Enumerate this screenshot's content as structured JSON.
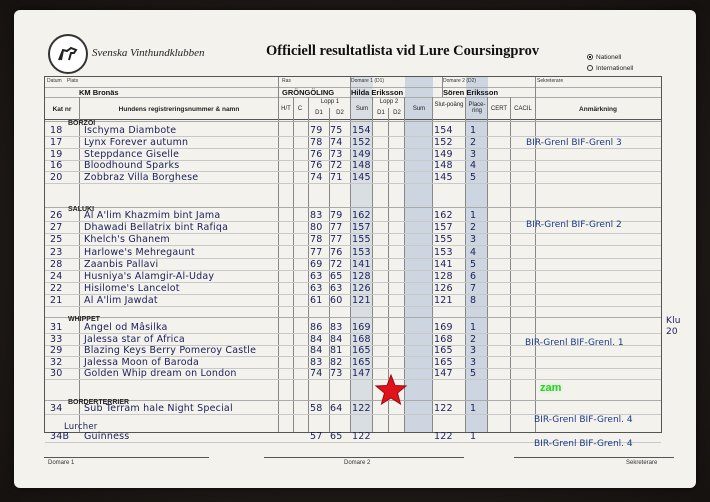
{
  "header": {
    "club": "Svenska Vinthundklubben",
    "title": "Officiell resultatlista vid Lure Coursingprov",
    "options": [
      "Nationell",
      "Internationell"
    ],
    "selected_option": "Nationell"
  },
  "info": {
    "datum_label": "Datum",
    "plats_label": "Plats",
    "plats_value": "KM Bronäs",
    "ras_label": "Ras",
    "ras_value": "GRÖNGÖLING",
    "domare1_label": "Domare 1 (D1)",
    "domare1_value": "Hilda Eriksson",
    "domare2_label": "Domare 2 (D2)",
    "domare2_value": "Sören Eriksson",
    "sekreterare_label": "Sekreterare"
  },
  "columns": {
    "kat_nr": "Kat nr",
    "name": "Hundens registreringsnummer & namn",
    "ht": "H/T",
    "c": "C",
    "d1": "D1",
    "d2": "D2",
    "lopp1": "Lopp 1",
    "lopp2": "Lopp 2",
    "sum": "Sum",
    "slut": "Slut-poäng",
    "placering": "Place-ring",
    "cert": "CERT",
    "cacil": "CACIL",
    "anm": "Anmärkning"
  },
  "groups": [
    {
      "breed": "BORZOI",
      "note": "BIR-Grenl  BIF-Grenl 3",
      "rows": [
        {
          "nr": "18",
          "name": "Ischyma Diambote",
          "l1d1": "79",
          "l1d2": "75",
          "sum": "154",
          "slut": "154",
          "plac": "1"
        },
        {
          "nr": "17",
          "name": "Lynx Forever autumn",
          "l1d1": "78",
          "l1d2": "74",
          "sum": "152",
          "slut": "152",
          "plac": "2"
        },
        {
          "nr": "19",
          "name": "Steppdance Giselle",
          "l1d1": "76",
          "l1d2": "73",
          "sum": "149",
          "slut": "149",
          "plac": "3"
        },
        {
          "nr": "16",
          "name": "Bloodhound Sparks",
          "l1d1": "76",
          "l1d2": "72",
          "sum": "148",
          "slut": "148",
          "plac": "4"
        },
        {
          "nr": "20",
          "name": "Zobbraz Villa Borghese",
          "l1d1": "74",
          "l1d2": "71",
          "sum": "145",
          "slut": "145",
          "plac": "5"
        }
      ]
    },
    {
      "breed": "SALUKI",
      "note": "BIR-Grenl  BIF-Grenl 2",
      "rows": [
        {
          "nr": "26",
          "name": "Al A'lim Khazmim bint Jama",
          "l1d1": "83",
          "l1d2": "79",
          "sum": "162",
          "slut": "162",
          "plac": "1"
        },
        {
          "nr": "27",
          "name": "Dhawadi Bellatrix bint Rafiqa",
          "l1d1": "80",
          "l1d2": "77",
          "sum": "157",
          "slut": "157",
          "plac": "2"
        },
        {
          "nr": "25",
          "name": "Khelch's Ghanem",
          "l1d1": "78",
          "l1d2": "77",
          "sum": "155",
          "slut": "155",
          "plac": "3"
        },
        {
          "nr": "23",
          "name": "Harlowe's Mehregaunt",
          "l1d1": "77",
          "l1d2": "76",
          "sum": "153",
          "slut": "153",
          "plac": "4"
        },
        {
          "nr": "28",
          "name": "Zaanbis Pallavi",
          "l1d1": "69",
          "l1d2": "72",
          "sum": "141",
          "slut": "141",
          "plac": "5"
        },
        {
          "nr": "24",
          "name": "Husniya's Alamgir-Al-Uday",
          "l1d1": "63",
          "l1d2": "65",
          "sum": "128",
          "slut": "128",
          "plac": "6"
        },
        {
          "nr": "22",
          "name": "Hisilome's Lancelot",
          "l1d1": "63",
          "l1d2": "63",
          "sum": "126",
          "slut": "126",
          "plac": "7"
        },
        {
          "nr": "21",
          "name": "Al A'lim Jawdat",
          "l1d1": "61",
          "l1d2": "60",
          "sum": "121",
          "slut": "121",
          "plac": "8"
        }
      ]
    },
    {
      "breed": "WHIPPET",
      "note": "BIR-Grenl  BIF-Grenl. 1",
      "rows": [
        {
          "nr": "31",
          "name": "Angel od Mâsilka",
          "l1d1": "86",
          "l1d2": "83",
          "sum": "169",
          "slut": "169",
          "plac": "1"
        },
        {
          "nr": "33",
          "name": "Jalessa star of Africa",
          "l1d1": "84",
          "l1d2": "84",
          "sum": "168",
          "slut": "168",
          "plac": "2"
        },
        {
          "nr": "29",
          "name": "Blazing Keys Berry Pomeroy Castle",
          "l1d1": "84",
          "l1d2": "81",
          "sum": "165",
          "slut": "165",
          "plac": "3"
        },
        {
          "nr": "32",
          "name": "Jalessa Moon of Baroda",
          "l1d1": "83",
          "l1d2": "82",
          "sum": "165",
          "slut": "165",
          "plac": "3"
        },
        {
          "nr": "30",
          "name": "Golden Whip dream on London",
          "l1d1": "74",
          "l1d2": "73",
          "sum": "147",
          "slut": "147",
          "plac": "5"
        }
      ]
    },
    {
      "breed": "BORDERTERRIER",
      "note": "BIR-Grenl  BIF-Grenl. 4",
      "rows": [
        {
          "nr": "34",
          "name": "Sub Terram hale Night Special",
          "l1d1": "58",
          "l1d2": "64",
          "sum": "122",
          "slut": "122",
          "plac": "1"
        }
      ]
    },
    {
      "breed": "Lurcher",
      "note": "BIR-Grenl  BIF-Grenl. 4",
      "rows": [
        {
          "nr": "34B",
          "name": "Guinness",
          "l1d1": "57",
          "l1d2": "65",
          "sum": "122",
          "slut": "122",
          "plac": "1"
        }
      ]
    }
  ],
  "margin_note": "Klu 20",
  "zam": "zam",
  "footer": {
    "domare1": "Domare 1",
    "domare2": "Domare 2",
    "sekreterare": "Sekreterare"
  },
  "colors": {
    "ink": "#1a1f5a",
    "shade": "#cdd5e0",
    "zam": "#3cc43c",
    "star": "#e0121a"
  }
}
